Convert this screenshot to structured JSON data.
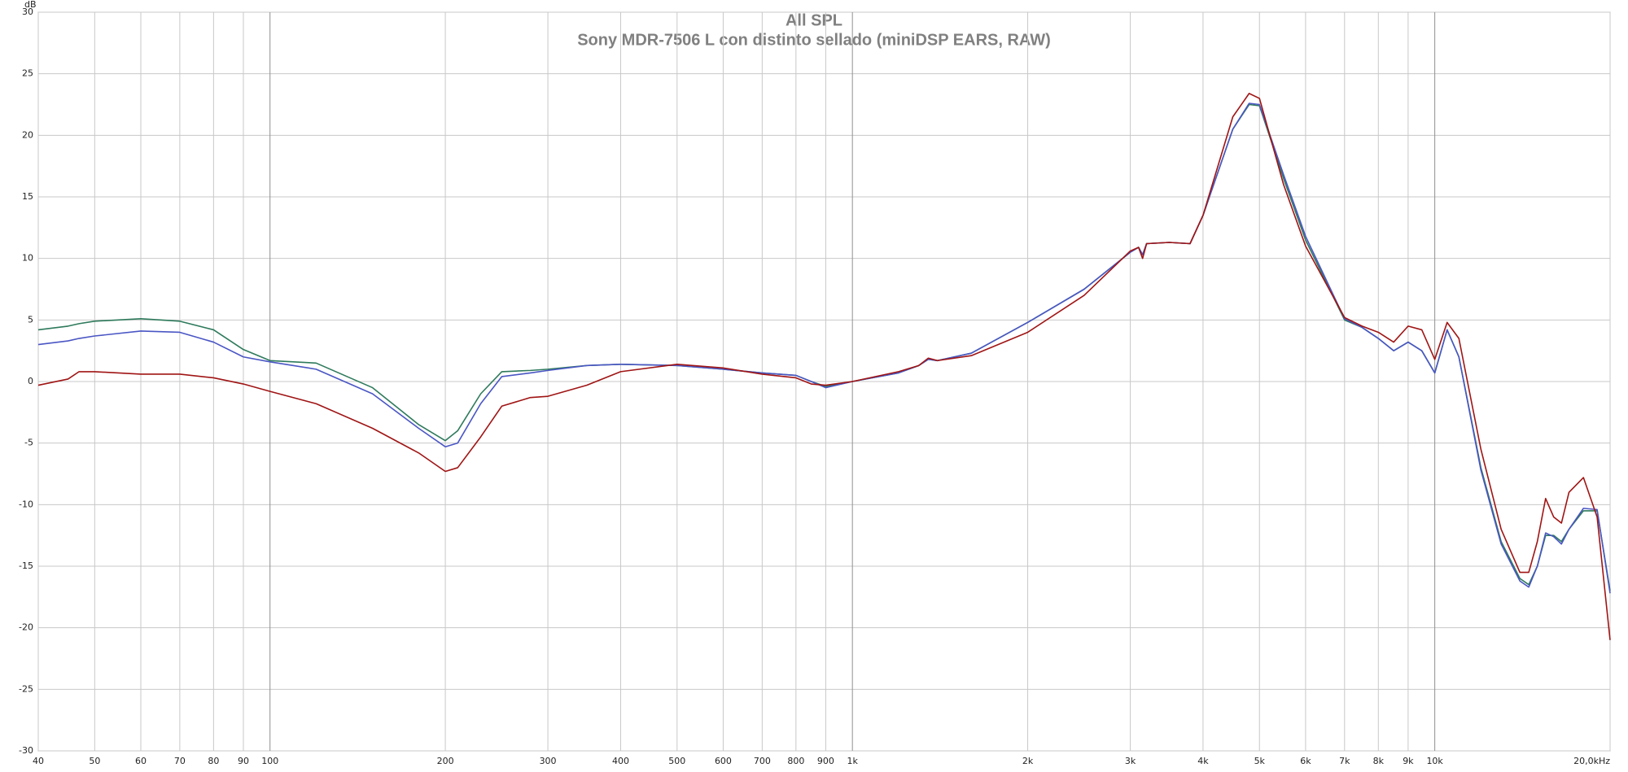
{
  "chart_data": {
    "type": "line",
    "title": "All SPL",
    "subtitle": "Sony MDR-7506 L con distinto sellado (miniDSP EARS, RAW)",
    "ylabel": "dB",
    "xscale": "log",
    "grid": true,
    "xlim": [
      40,
      20000
    ],
    "ylim": [
      -30,
      30
    ],
    "xticks": [
      40,
      50,
      60,
      70,
      80,
      90,
      100,
      200,
      300,
      400,
      500,
      600,
      700,
      800,
      900,
      {
        "value": 1000,
        "label": "1k"
      },
      {
        "value": 2000,
        "label": "2k"
      },
      {
        "value": 3000,
        "label": "3k"
      },
      {
        "value": 4000,
        "label": "4k"
      },
      {
        "value": 5000,
        "label": "5k"
      },
      {
        "value": 6000,
        "label": "6k"
      },
      {
        "value": 7000,
        "label": "7k"
      },
      {
        "value": 8000,
        "label": "8k"
      },
      {
        "value": 9000,
        "label": "9k"
      },
      {
        "value": 10000,
        "label": "10k"
      },
      {
        "value": 20000,
        "label": "20,0kHz"
      }
    ],
    "yticks": [
      -30,
      -25,
      -20,
      -15,
      -10,
      -5,
      0,
      5,
      10,
      15,
      20,
      25,
      30
    ],
    "x": [
      40,
      45,
      47,
      50,
      60,
      70,
      80,
      90,
      100,
      120,
      150,
      180,
      200,
      210,
      230,
      250,
      280,
      300,
      350,
      400,
      500,
      600,
      700,
      800,
      850,
      900,
      1000,
      1200,
      1300,
      1350,
      1400,
      1600,
      2000,
      2500,
      3000,
      3100,
      3150,
      3200,
      3500,
      3800,
      4000,
      4500,
      4800,
      5000,
      5500,
      6000,
      7000,
      7500,
      8000,
      8500,
      9000,
      9500,
      10000,
      10500,
      11000,
      12000,
      13000,
      14000,
      14500,
      15000,
      15500,
      16000,
      16500,
      17000,
      18000,
      19000,
      20000
    ],
    "series": [
      {
        "color": "#2e7a5c",
        "values": [
          4.2,
          4.5,
          4.7,
          4.9,
          5.1,
          4.9,
          4.2,
          2.6,
          1.7,
          1.5,
          -0.5,
          -3.5,
          -4.8,
          -4.0,
          -1.0,
          0.8,
          0.9,
          1.0,
          1.3,
          1.4,
          1.3,
          1.0,
          0.7,
          0.5,
          0,
          -0.4,
          0,
          0.7,
          1.3,
          1.8,
          1.7,
          2.3,
          4.8,
          7.5,
          10.5,
          10.9,
          10.3,
          11.2,
          11.3,
          11.2,
          13.5,
          20.5,
          22.5,
          22.4,
          16.5,
          11.5,
          5.0,
          4.4,
          3.5,
          2.5,
          3.2,
          2.5,
          0.7,
          4.2,
          2.0,
          -7.0,
          -13.0,
          -16.0,
          -16.5,
          -15.0,
          -12.5,
          -12.5,
          -13.0,
          -12.0,
          -10.5,
          -10.5,
          -17.0
        ]
      },
      {
        "color": "#4a56c4",
        "values": [
          3.0,
          3.3,
          3.5,
          3.7,
          4.1,
          4.0,
          3.2,
          2.0,
          1.6,
          1.0,
          -1.0,
          -3.8,
          -5.3,
          -5.0,
          -1.8,
          0.4,
          0.7,
          0.9,
          1.3,
          1.4,
          1.3,
          1.0,
          0.7,
          0.5,
          0,
          -0.5,
          0,
          0.7,
          1.3,
          1.8,
          1.7,
          2.3,
          4.8,
          7.5,
          10.5,
          10.9,
          10.3,
          11.2,
          11.3,
          11.2,
          13.5,
          20.5,
          22.6,
          22.5,
          16.8,
          11.8,
          5.1,
          4.4,
          3.5,
          2.5,
          3.2,
          2.5,
          0.7,
          4.2,
          2.0,
          -7.2,
          -13.2,
          -16.2,
          -16.7,
          -15.0,
          -12.3,
          -12.6,
          -13.2,
          -12.0,
          -10.3,
          -10.4,
          -17.2
        ]
      },
      {
        "color": "#a01414",
        "values": [
          -0.3,
          0.2,
          0.8,
          0.8,
          0.6,
          0.6,
          0.3,
          -0.2,
          -0.8,
          -1.8,
          -3.8,
          -5.8,
          -7.3,
          -7.0,
          -4.5,
          -2.0,
          -1.3,
          -1.2,
          -0.3,
          0.8,
          1.4,
          1.1,
          0.6,
          0.3,
          -0.2,
          -0.3,
          0,
          0.8,
          1.3,
          1.9,
          1.7,
          2.1,
          4.0,
          7.0,
          10.6,
          10.9,
          10.0,
          11.2,
          11.3,
          11.2,
          13.5,
          21.5,
          23.4,
          23.0,
          16.0,
          11.0,
          5.2,
          4.5,
          4.0,
          3.2,
          4.5,
          4.2,
          1.8,
          4.8,
          3.5,
          -5.5,
          -12.0,
          -15.5,
          -15.5,
          -13.0,
          -9.5,
          -11.0,
          -11.5,
          -9.0,
          -7.8,
          -11.0,
          -21.0
        ]
      }
    ]
  }
}
